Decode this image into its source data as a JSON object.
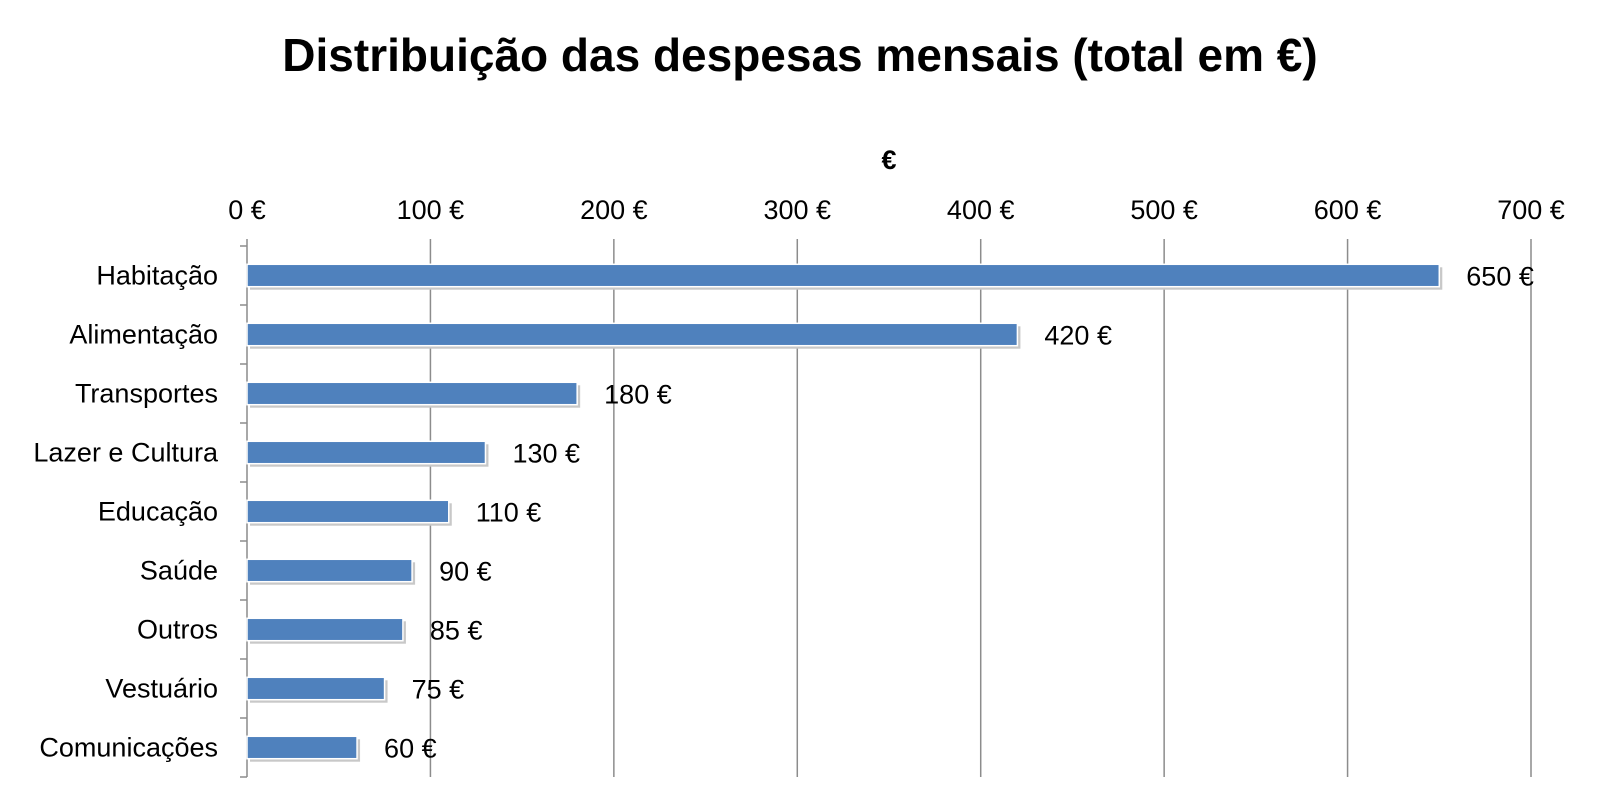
{
  "chart_data": {
    "type": "bar",
    "orientation": "horizontal",
    "title": "Distribuição das despesas mensais (total em €)",
    "xlabel": "€",
    "ylabel": "",
    "xaxis_position": "top",
    "xlim": [
      0,
      700
    ],
    "x_ticks": [
      0,
      100,
      200,
      300,
      400,
      500,
      600,
      700
    ],
    "x_tick_labels": [
      "0 €",
      "100 €",
      "200 €",
      "300 €",
      "400 €",
      "500 €",
      "600 €",
      "700 €"
    ],
    "categories": [
      "Habitação",
      "Alimentação",
      "Transportes",
      "Lazer e Cultura",
      "Educação",
      "Saúde",
      "Outros",
      "Vestuário",
      "Comunicações"
    ],
    "values": [
      650,
      420,
      180,
      130,
      110,
      90,
      85,
      75,
      60
    ],
    "data_labels": [
      "650 €",
      "420 €",
      "180 €",
      "130 €",
      "110 €",
      "90 €",
      "85 €",
      "75 €",
      "60 €"
    ],
    "grid": true,
    "legend": "none",
    "bar_color": "#4f81bd"
  }
}
